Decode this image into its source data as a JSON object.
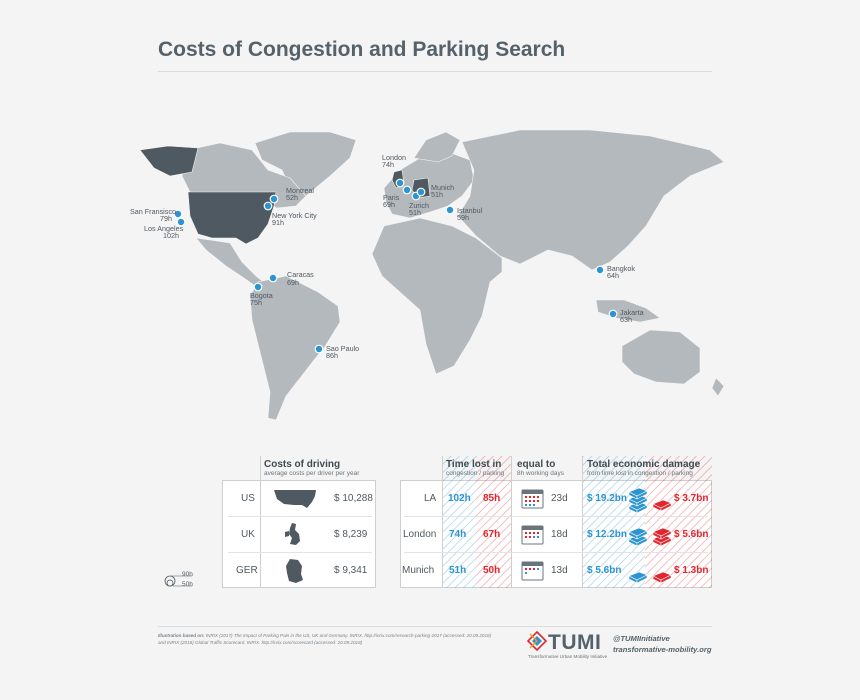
{
  "title": "Costs of Congestion and Parking Search",
  "cities": [
    {
      "id": "san-francisco",
      "name": "San Fransisco",
      "hours": "79h"
    },
    {
      "id": "los-angeles",
      "name": "Los Angeles",
      "hours": "102h"
    },
    {
      "id": "montreal",
      "name": "Montreal",
      "hours": "52h"
    },
    {
      "id": "new-york",
      "name": "New York City",
      "hours": "91h"
    },
    {
      "id": "caracas",
      "name": "Caracas",
      "hours": "69h"
    },
    {
      "id": "bogota",
      "name": "Bogota",
      "hours": "75h"
    },
    {
      "id": "sao-paulo",
      "name": "Sao Paulo",
      "hours": "86h"
    },
    {
      "id": "london",
      "name": "London",
      "hours": "74h"
    },
    {
      "id": "paris",
      "name": "Paris",
      "hours": "69h"
    },
    {
      "id": "zurich",
      "name": "Zurich",
      "hours": "51h"
    },
    {
      "id": "munich",
      "name": "Munich",
      "hours": "51h"
    },
    {
      "id": "istanbul",
      "name": "Istanbul",
      "hours": "59h"
    },
    {
      "id": "bangkok",
      "name": "Bangkok",
      "hours": "64h"
    },
    {
      "id": "jakarta",
      "name": "Jakarta",
      "hours": "63h"
    }
  ],
  "legend": {
    "high": "90h",
    "low": "50h"
  },
  "driving_costs": {
    "title": "Costs of driving",
    "subtitle": "average costs per driver per year",
    "rows": [
      {
        "country": "US",
        "cost": "$ 10,288"
      },
      {
        "country": "UK",
        "cost": "$ 8,239"
      },
      {
        "country": "GER",
        "cost": "$ 9,341"
      }
    ]
  },
  "time_lost": {
    "col1_title": "Time lost in",
    "col1_sub": "congestion / parking",
    "col2_title": "equal to",
    "col2_sub": "8h working days",
    "col3_title": "Total economic damage",
    "col3_sub": "from time lost in congestion / parking",
    "rows": [
      {
        "city": "LA",
        "congestion": "102h",
        "parking": "85h",
        "days": "23d",
        "damage_congestion": "$ 19.2bn",
        "damage_parking": "$ 3.7bn"
      },
      {
        "city": "London",
        "congestion": "74h",
        "parking": "67h",
        "days": "18d",
        "damage_congestion": "$ 12.2bn",
        "damage_parking": "$ 5.6bn"
      },
      {
        "city": "Munich",
        "congestion": "51h",
        "parking": "50h",
        "days": "13d",
        "damage_congestion": "$ 5.6bn",
        "damage_parking": "$ 1.3bn"
      }
    ]
  },
  "footer": {
    "source_label": "Illustration based on:",
    "source_line1": "INRIX (2017) The Impact of Parking Pain in the US, UK and Germany. INRIX. http://inrix.com/research-parking-2017 (accessed: 20.09.2018)",
    "source_line2": "and INRIX (2018) Global Traffic Scorecard. INRIX. http://inrix.com/scorecard (accessed: 20.09.2018)",
    "brand": "TUMI",
    "brand_sub": "Transformative Urban Mobility Initiative",
    "handle": "@TUMIInitiative",
    "website": "transformative-mobility.org"
  },
  "colors": {
    "accent_blue": "#2c94d0",
    "accent_red": "#e1262e",
    "map_land": "#b4b9bd",
    "map_highlight": "#4f5961"
  }
}
